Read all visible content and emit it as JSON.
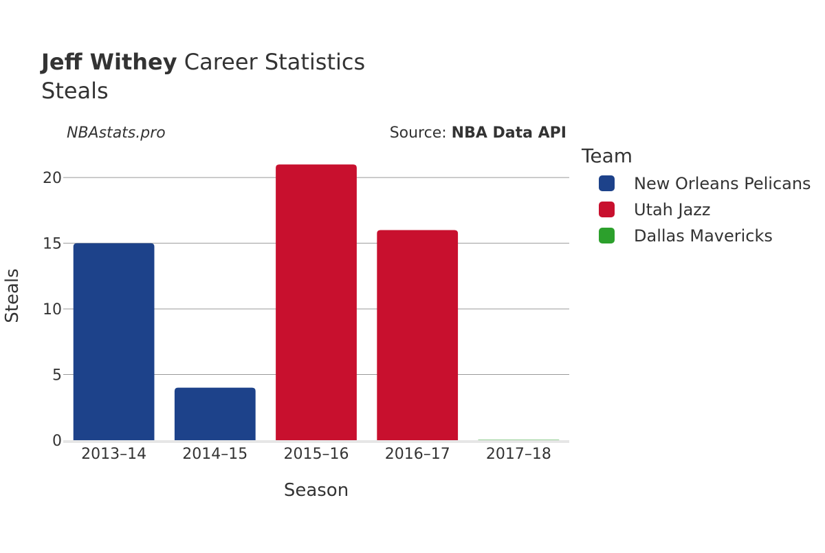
{
  "header": {
    "title_bold": "Jeff Withey",
    "title_rest": " Career Statistics",
    "subtitle": "Steals"
  },
  "credits": {
    "site": "NBAstats.pro",
    "source_prefix": "Source: ",
    "source_name": "NBA Data API"
  },
  "legend": {
    "title": "Team",
    "placement": "right"
  },
  "colors": {
    "text": "#333333",
    "grid": "#999999",
    "axis_line": "#e6e6e6"
  },
  "chart_data": {
    "type": "bar",
    "title": "Jeff Withey Career Statistics",
    "subtitle": "Steals",
    "xlabel": "Season",
    "ylabel": "Steals",
    "categories": [
      "2013–14",
      "2014–15",
      "2015–16",
      "2016–17",
      "2017–18"
    ],
    "ylim": [
      0,
      22
    ],
    "yticks": [
      0,
      5,
      10,
      15,
      20
    ],
    "grid": true,
    "series": [
      {
        "name": "New Orleans Pelicans",
        "color": "#1d428a",
        "values": [
          15,
          4,
          null,
          null,
          null
        ]
      },
      {
        "name": "Utah Jazz",
        "color": "#c8102e",
        "values": [
          null,
          null,
          21,
          16,
          null
        ]
      },
      {
        "name": "Dallas Mavericks",
        "color": "#2ca02c",
        "values": [
          null,
          null,
          null,
          null,
          0
        ]
      }
    ]
  }
}
